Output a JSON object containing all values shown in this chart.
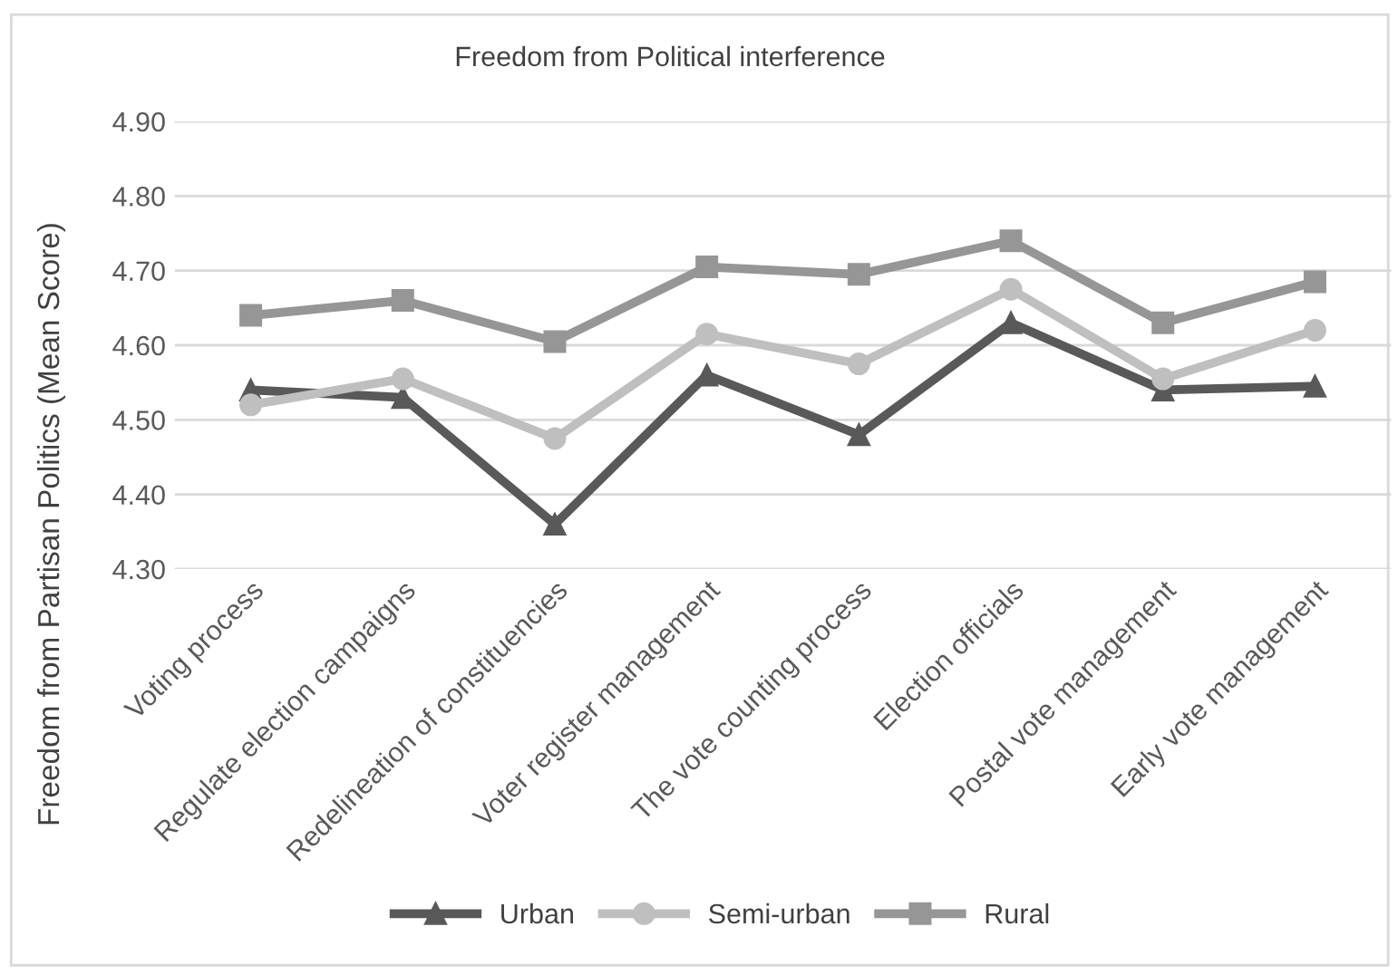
{
  "chart_data": {
    "type": "line",
    "title": "Freedom from Political interference",
    "ylabel": "Freedom from Partisan Politics (Mean Score)",
    "categories": [
      "Voting process",
      "Regulate election campaigns",
      "Redelineation of constituencies",
      "Voter register management",
      "The vote counting process",
      "Election officials",
      "Postal vote management",
      "Early vote management"
    ],
    "series": [
      {
        "name": "Urban",
        "color": "#595959",
        "marker": "triangle",
        "values": [
          4.54,
          4.53,
          4.36,
          4.56,
          4.48,
          4.63,
          4.54,
          4.545
        ]
      },
      {
        "name": "Semi-urban",
        "color": "#bfbfbf",
        "marker": "circle",
        "values": [
          4.52,
          4.555,
          4.475,
          4.615,
          4.575,
          4.675,
          4.555,
          4.62
        ]
      },
      {
        "name": "Rural",
        "color": "#969696",
        "marker": "square",
        "values": [
          4.64,
          4.66,
          4.605,
          4.705,
          4.695,
          4.74,
          4.63,
          4.685
        ]
      }
    ],
    "ylim": [
      4.3,
      4.9
    ],
    "yticks": [
      {
        "value": 4.3,
        "label": "4.30"
      },
      {
        "value": 4.4,
        "label": "4.40"
      },
      {
        "value": 4.5,
        "label": "4.50"
      },
      {
        "value": 4.6,
        "label": "4.60"
      },
      {
        "value": 4.7,
        "label": "4.70"
      },
      {
        "value": 4.8,
        "label": "4.80"
      },
      {
        "value": 4.9,
        "label": "4.90"
      }
    ],
    "grid": "y",
    "legend": "bottom",
    "line_style": "solid"
  }
}
